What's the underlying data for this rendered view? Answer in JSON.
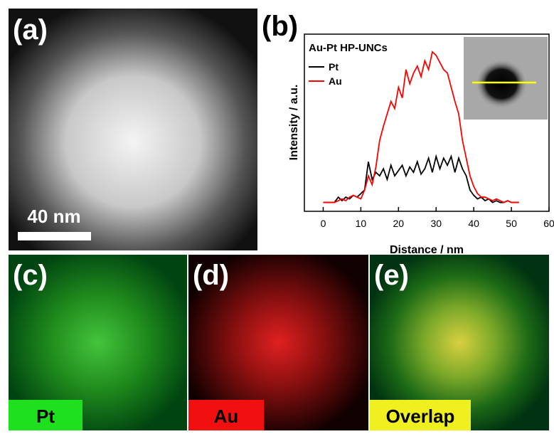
{
  "panels": {
    "a": {
      "label": "(a)",
      "scale_bar": "40 nm"
    },
    "b": {
      "label": "(b)"
    },
    "c": {
      "label": "(c)",
      "element": "Pt"
    },
    "d": {
      "label": "(d)",
      "element": "Au"
    },
    "e": {
      "label": "(e)",
      "element": "Overlap"
    }
  },
  "chart_data": {
    "type": "line",
    "legend_title": "Au-Pt HP-UNCs",
    "x_label": "Distance / nm",
    "y_label": "Intensity / a.u.",
    "x": [
      0,
      1,
      2,
      3,
      4,
      5,
      6,
      7,
      8,
      9,
      10,
      11,
      12,
      13,
      14,
      15,
      16,
      17,
      18,
      19,
      20,
      21,
      22,
      23,
      24,
      25,
      26,
      27,
      28,
      29,
      30,
      31,
      32,
      33,
      34,
      35,
      36,
      37,
      38,
      39,
      40,
      41,
      42,
      43,
      44,
      45,
      46,
      47,
      48,
      49,
      50,
      51,
      52
    ],
    "series": [
      {
        "name": "Pt",
        "color": "#000000",
        "values": [
          5,
          5,
          5,
          5,
          8,
          6,
          8,
          7,
          9,
          8,
          10,
          12,
          28,
          18,
          22,
          20,
          24,
          18,
          26,
          20,
          23,
          26,
          20,
          25,
          22,
          28,
          21,
          24,
          30,
          22,
          31,
          24,
          30,
          26,
          31,
          22,
          30,
          24,
          20,
          12,
          9,
          7,
          8,
          6,
          7,
          5,
          6,
          5,
          5,
          6,
          5,
          5,
          5
        ]
      },
      {
        "name": "Au",
        "color": "#ff0000",
        "values": [
          5,
          5,
          5,
          5,
          6,
          7,
          6,
          8,
          9,
          8,
          7,
          12,
          20,
          15,
          25,
          40,
          48,
          55,
          62,
          58,
          70,
          64,
          80,
          72,
          78,
          82,
          76,
          85,
          80,
          90,
          88,
          84,
          80,
          78,
          70,
          62,
          55,
          40,
          30,
          20,
          14,
          10,
          8,
          8,
          7,
          6,
          7,
          6,
          5,
          6,
          5,
          5,
          5
        ]
      }
    ],
    "xlim": [
      -5,
      60
    ],
    "ylim": [
      0,
      100
    ],
    "xticks": [
      0,
      10,
      20,
      30,
      40,
      50,
      60
    ],
    "legend": "upper left"
  }
}
